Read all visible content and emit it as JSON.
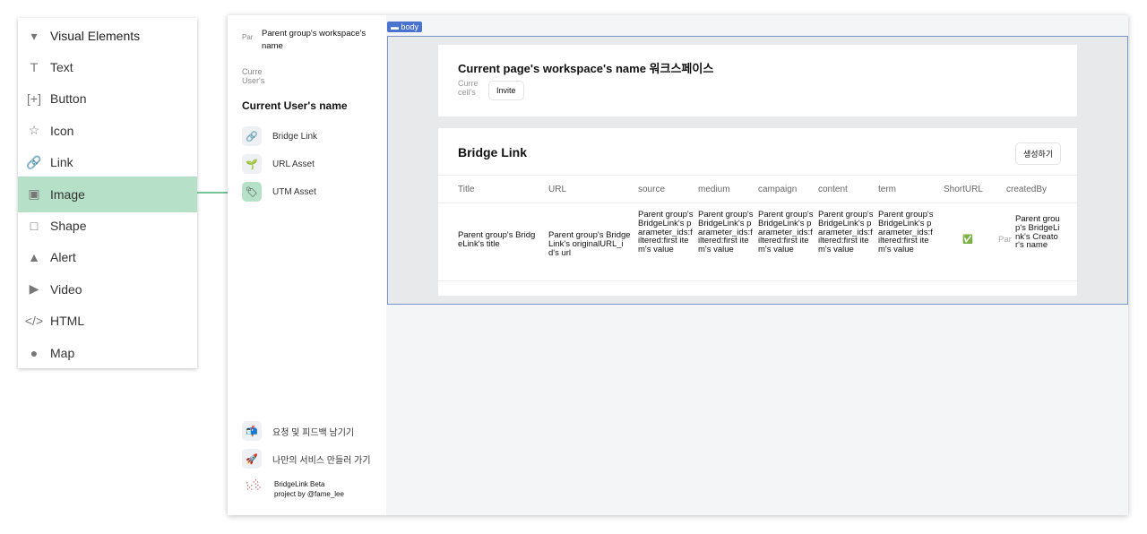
{
  "palette": {
    "header": "Visual Elements",
    "items": [
      {
        "label": "Text",
        "icon": "T"
      },
      {
        "label": "Button",
        "icon": "[+]"
      },
      {
        "label": "Icon",
        "icon": "☆"
      },
      {
        "label": "Link",
        "icon": "🔗"
      },
      {
        "label": "Image",
        "icon": "▣"
      },
      {
        "label": "Shape",
        "icon": "□"
      },
      {
        "label": "Alert",
        "icon": "▲"
      },
      {
        "label": "Video",
        "icon": "▶"
      },
      {
        "label": "HTML",
        "icon": "</>"
      },
      {
        "label": "Map",
        "icon": "●"
      }
    ],
    "selected": "Image",
    "highlight_color": "#b7e0c8"
  },
  "sidebar": {
    "workspace_name": "Parent group's workspace's name",
    "workspace_img_alt": "Par",
    "user_img_alt": "Curre User's",
    "user_name": "Current User's name",
    "nav": [
      {
        "label": "Bridge Link",
        "icon": "🔗"
      },
      {
        "label": "URL Asset",
        "icon": "🌱"
      },
      {
        "label": "UTM Asset",
        "icon": "🏷"
      }
    ],
    "footer": [
      {
        "label": "요청 및 피드백 남기기",
        "icon": "📬"
      },
      {
        "label": "나만의 서비스 만들러 가기",
        "icon": "🚀"
      }
    ],
    "brand_line1": "BridgeLink Beta",
    "brand_line2": "project by @fame_lee"
  },
  "body_tag": "body",
  "header_card": {
    "title": "Current page's workspace's name 워크스페이스",
    "avatar_alt": "Curre cell's",
    "invite": "Invite"
  },
  "table_card": {
    "title": "Bridge Link",
    "create": "생성하기",
    "columns": [
      "Title",
      "URL",
      "source",
      "medium",
      "campaign",
      "content",
      "term",
      "ShortURL",
      "createdBy"
    ],
    "row": {
      "title": "Parent group's BridgeLink's title",
      "url": "Parent group's BridgeLink's originalURL_id's url",
      "param": "Parent group's BridgeLink's parameter_ids:filtered:first item's value",
      "short": "✅",
      "creator_alt": "Par",
      "creator": "Parent group's BridgeLink's Creator's name"
    }
  }
}
